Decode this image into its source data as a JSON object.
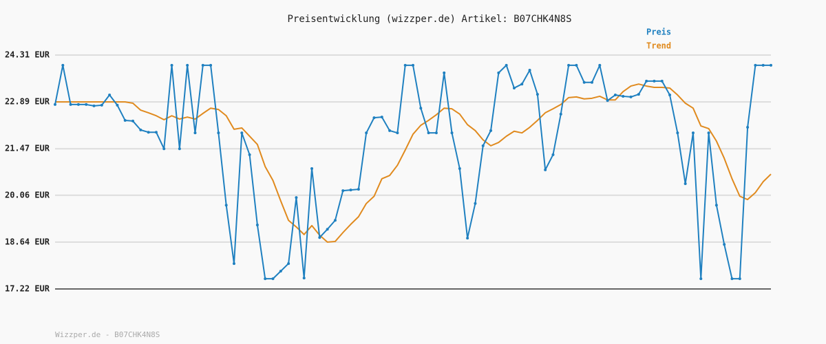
{
  "chart_data": {
    "type": "line",
    "title": "Preisentwicklung (wizzper.de) Artikel: B07CHK4N8S",
    "ylim": [
      17.22,
      24.31
    ],
    "yticks": [
      {
        "value": 17.22,
        "label": "17.22 EUR"
      },
      {
        "value": 18.64,
        "label": "18.64 EUR"
      },
      {
        "value": 20.06,
        "label": "20.06 EUR"
      },
      {
        "value": 21.47,
        "label": "21.47 EUR"
      },
      {
        "value": 22.89,
        "label": "22.89 EUR"
      },
      {
        "value": 24.31,
        "label": "24.31 EUR"
      }
    ],
    "grid": true,
    "series": [
      {
        "name": "Preis",
        "color": "#1f80c0",
        "markers": true,
        "values": [
          22.81,
          24.0,
          22.81,
          22.81,
          22.81,
          22.77,
          22.79,
          23.1,
          22.79,
          22.33,
          22.31,
          22.04,
          21.97,
          21.97,
          21.47,
          24.0,
          21.47,
          24.0,
          21.95,
          24.0,
          24.0,
          21.95,
          19.76,
          17.99,
          21.95,
          21.29,
          19.16,
          17.53,
          17.53,
          17.76,
          17.99,
          19.99,
          17.55,
          20.87,
          18.78,
          19.03,
          19.3,
          20.2,
          20.22,
          20.24,
          21.95,
          22.41,
          22.43,
          22.02,
          21.95,
          24.0,
          24.0,
          22.7,
          21.95,
          21.95,
          23.77,
          21.95,
          20.87,
          18.76,
          19.81,
          21.56,
          22.02,
          23.77,
          24.0,
          23.31,
          23.43,
          23.85,
          23.12,
          20.83,
          21.29,
          22.52,
          24.0,
          24.0,
          23.48,
          23.48,
          24.0,
          22.93,
          23.1,
          23.06,
          23.04,
          23.12,
          23.52,
          23.52,
          23.52,
          23.1,
          21.95,
          20.41,
          21.95,
          17.53,
          21.95,
          19.76,
          18.57,
          17.53,
          17.53,
          22.12,
          24.0,
          24.0,
          24.0
        ]
      },
      {
        "name": "Trend",
        "color": "#e08a1e",
        "markers": false,
        "values": [
          22.89,
          22.89,
          22.89,
          22.89,
          22.89,
          22.89,
          22.89,
          22.89,
          22.89,
          22.89,
          22.85,
          22.64,
          22.56,
          22.47,
          22.35,
          22.47,
          22.37,
          22.43,
          22.37,
          22.54,
          22.7,
          22.66,
          22.47,
          22.06,
          22.1,
          21.85,
          21.6,
          20.93,
          20.51,
          19.89,
          19.3,
          19.1,
          18.87,
          19.14,
          18.85,
          18.64,
          18.66,
          18.93,
          19.18,
          19.41,
          19.81,
          20.03,
          20.56,
          20.66,
          20.97,
          21.43,
          21.91,
          22.18,
          22.33,
          22.5,
          22.7,
          22.68,
          22.52,
          22.2,
          22.02,
          21.74,
          21.56,
          21.66,
          21.85,
          22.0,
          21.95,
          22.12,
          22.33,
          22.56,
          22.68,
          22.81,
          23.02,
          23.04,
          22.98,
          23.0,
          23.06,
          22.95,
          22.95,
          23.2,
          23.37,
          23.43,
          23.37,
          23.33,
          23.33,
          23.31,
          23.1,
          22.85,
          22.7,
          22.16,
          22.08,
          21.7,
          21.18,
          20.56,
          20.03,
          19.93,
          20.14,
          20.47,
          20.7
        ]
      }
    ]
  },
  "footer": "Wizzper.de - B07CHK4N8S"
}
